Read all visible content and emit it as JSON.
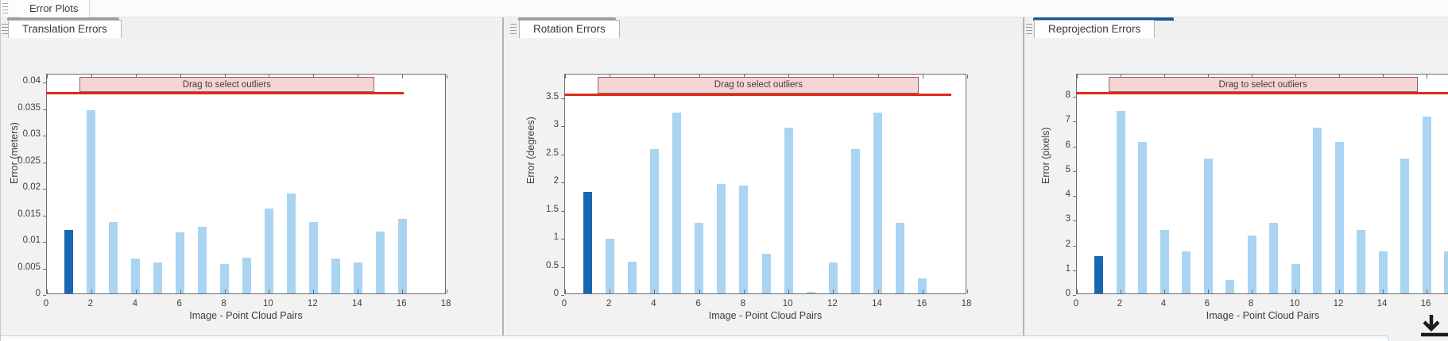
{
  "window": {
    "doc_tab_label": "Error Plots"
  },
  "colors": {
    "bar": "#a9d4f2",
    "bar_selected": "#1668b0",
    "threshold_line": "#dc2b1c",
    "banner_fill": "#f5d5d3",
    "accent_focused": "#155a9e",
    "accent_unfocused": "#9d9d9d"
  },
  "chart_data": [
    {
      "type": "bar",
      "tab_label": "Translation Errors",
      "banner_label": "Drag to select outliers",
      "xlabel": "Image - Point Cloud Pairs",
      "ylabel": "Error (meters)",
      "categories": [
        1,
        2,
        3,
        4,
        5,
        6,
        7,
        8,
        9,
        10,
        11,
        12,
        13,
        14,
        15,
        16
      ],
      "values": [
        0.012,
        0.0345,
        0.0135,
        0.0066,
        0.0058,
        0.0115,
        0.0126,
        0.0056,
        0.0067,
        0.016,
        0.0188,
        0.0135,
        0.0066,
        0.0058,
        0.0116,
        0.014
      ],
      "selected_bar_index": 0,
      "threshold": 0.038,
      "ylim": [
        0,
        0.0415
      ],
      "xlim": [
        0,
        18
      ],
      "xticks": [
        0,
        2,
        4,
        6,
        8,
        10,
        12,
        14,
        16,
        18
      ],
      "yticks": [
        "0",
        "0.005",
        "0.01",
        "0.015",
        "0.02",
        "0.025",
        "0.03",
        "0.035",
        "0.04"
      ],
      "grid": false,
      "legend": null
    },
    {
      "type": "bar",
      "tab_label": "Rotation Errors",
      "banner_label": "Drag to select outliers",
      "xlabel": "Image - Point Cloud Pairs",
      "ylabel": "Error (degrees)",
      "categories": [
        1,
        2,
        3,
        4,
        5,
        6,
        7,
        8,
        9,
        10,
        11,
        12,
        13,
        14,
        15,
        16
      ],
      "values": [
        1.8,
        0.98,
        0.56,
        2.56,
        3.22,
        1.25,
        1.95,
        1.92,
        0.7,
        2.95,
        0.03,
        0.55,
        2.56,
        3.22,
        1.25,
        0.27
      ],
      "selected_bar_index": 0,
      "threshold": 3.57,
      "ylim": [
        0,
        3.92
      ],
      "xlim": [
        0,
        18
      ],
      "xticks": [
        0,
        2,
        4,
        6,
        8,
        10,
        12,
        14,
        16,
        18
      ],
      "yticks": [
        "0",
        "0.5",
        "1",
        "1.5",
        "2",
        "2.5",
        "3",
        "3.5"
      ],
      "grid": false,
      "legend": null
    },
    {
      "type": "bar",
      "tab_label": "Reprojection Errors",
      "banner_label": "Drag to select outliers",
      "xlabel": "Image - Point Cloud Pairs",
      "ylabel": "Error (pixels)",
      "categories": [
        1,
        2,
        3,
        4,
        5,
        6,
        7,
        8,
        9,
        10,
        11,
        12,
        13,
        14,
        15,
        16,
        17
      ],
      "values": [
        1.5,
        7.35,
        6.1,
        2.55,
        1.7,
        5.45,
        0.55,
        2.35,
        2.85,
        1.2,
        6.7,
        6.1,
        2.55,
        1.7,
        5.45,
        7.15,
        1.7
      ],
      "selected_bar_index": 0,
      "threshold": 8.15,
      "ylim": [
        0,
        8.9
      ],
      "xlim": [
        0,
        18
      ],
      "xticks": [
        0,
        2,
        4,
        6,
        8,
        10,
        12,
        14,
        16
      ],
      "yticks": [
        "0",
        "1",
        "2",
        "3",
        "4",
        "5",
        "6",
        "7",
        "8"
      ],
      "grid": false,
      "legend": null
    }
  ]
}
